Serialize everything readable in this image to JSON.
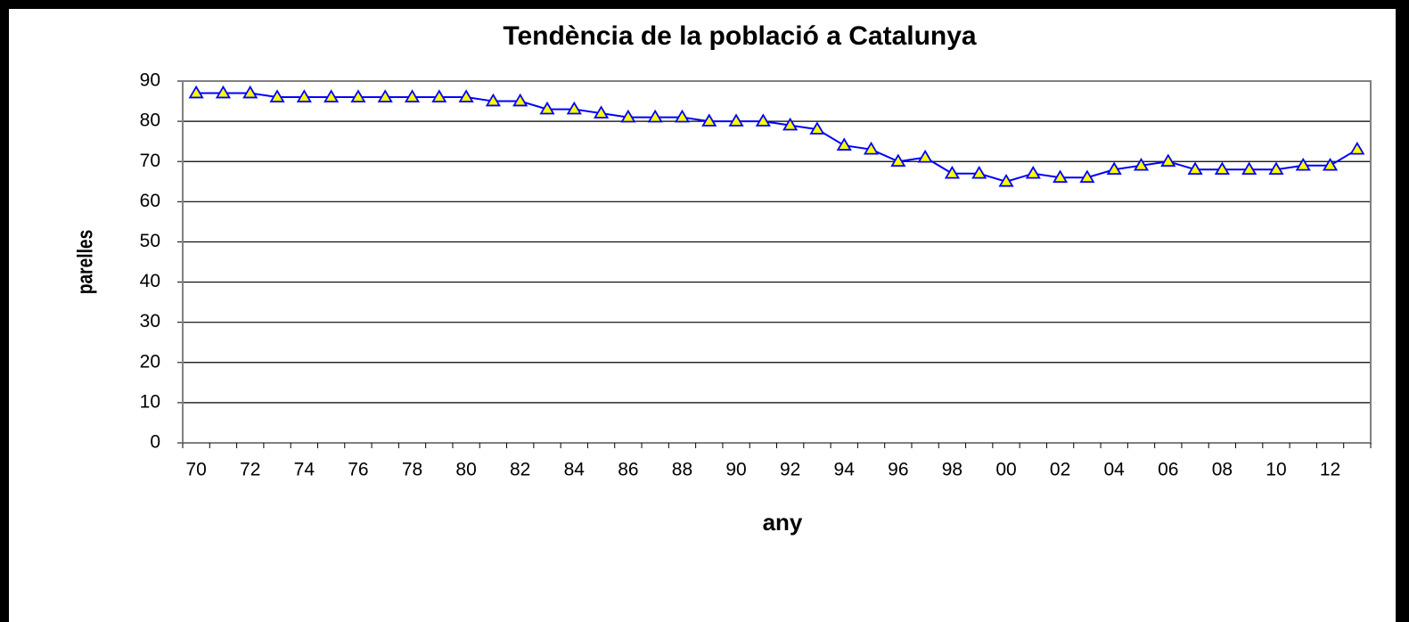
{
  "chart_data": {
    "type": "line",
    "title": "Tendència de la població a Catalunya",
    "x_label": "any",
    "y_label": "parelles",
    "categories": [
      "70",
      null,
      "72",
      null,
      "74",
      null,
      "76",
      null,
      "78",
      null,
      "80",
      null,
      "82",
      null,
      "84",
      null,
      "86",
      null,
      "88",
      null,
      "90",
      null,
      "92",
      null,
      "94",
      null,
      "96",
      null,
      "98",
      null,
      "00",
      null,
      "02",
      null,
      "04",
      null,
      "06",
      null,
      "08",
      null,
      "10",
      null,
      "12",
      null
    ],
    "values": [
      87,
      87,
      87,
      86,
      86,
      86,
      86,
      86,
      86,
      86,
      86,
      85,
      85,
      83,
      83,
      82,
      81,
      81,
      81,
      80,
      80,
      80,
      79,
      78,
      74,
      73,
      70,
      71,
      67,
      67,
      65,
      67,
      66,
      66,
      68,
      69,
      70,
      68,
      68,
      68,
      68,
      69,
      69,
      73
    ],
    "color": "#0000ff",
    "marker_color": "#ffff00",
    "ylim": [
      0,
      90
    ],
    "yticks": [
      0,
      10,
      20,
      30,
      40,
      50,
      60,
      70,
      80,
      90
    ],
    "grid": true
  }
}
